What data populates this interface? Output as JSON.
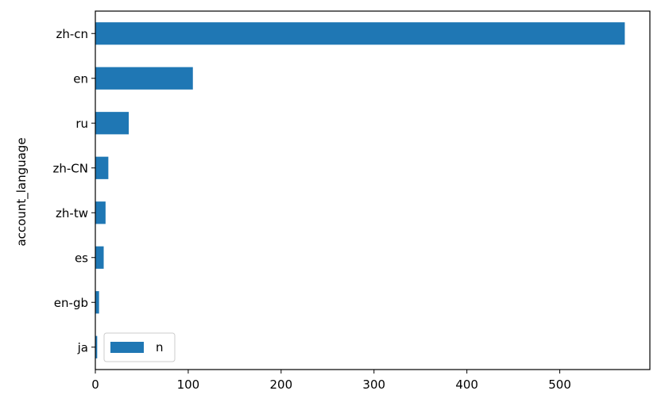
{
  "chart_data": {
    "type": "bar",
    "orientation": "horizontal",
    "title": "",
    "xlabel": "",
    "ylabel": "account_language",
    "categories": [
      "zh-cn",
      "en",
      "ru",
      "zh-CN",
      "zh-tw",
      "es",
      "en-gb",
      "ja"
    ],
    "series": [
      {
        "name": "n",
        "values": [
          570,
          105,
          36,
          14,
          11,
          9,
          4,
          2
        ],
        "color": "#1f77b4"
      }
    ],
    "xlim": [
      0,
      597
    ],
    "xticks": [
      0,
      100,
      200,
      300,
      400,
      500
    ],
    "grid": false,
    "legend": {
      "position": "lower-left",
      "entries": [
        "n"
      ]
    }
  }
}
